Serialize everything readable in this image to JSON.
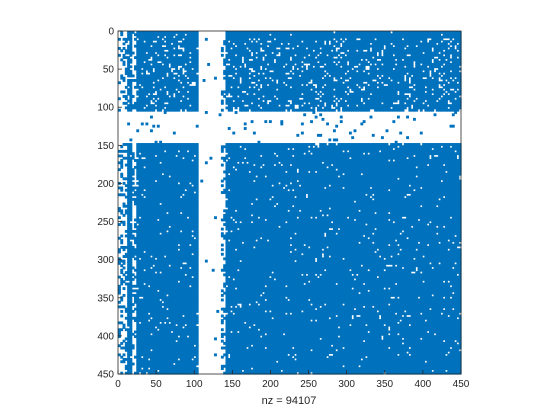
{
  "chart_data": {
    "type": "heatmap",
    "plot_kind": "sparsity pattern",
    "title": "",
    "xlabel": "nz = 94107",
    "ylabel": "",
    "nz": 94107,
    "rows": 450,
    "cols": 450,
    "xlim": [
      0,
      450
    ],
    "ylim": [
      0,
      450
    ],
    "y_axis_direction": "reversed",
    "x_axis_location": "bottom",
    "grid": false,
    "marker_color": "#0072BD",
    "x_ticks": [
      0,
      50,
      100,
      150,
      200,
      250,
      300,
      350,
      400,
      450
    ],
    "y_ticks": [
      0,
      50,
      100,
      150,
      200,
      250,
      300,
      350,
      400,
      450
    ],
    "row_bands": [
      {
        "rows": [
          0,
          8
        ],
        "density": 0.97
      },
      {
        "rows": [
          8,
          105
        ],
        "density": 0.86
      },
      {
        "rows": [
          105,
          147
        ],
        "density": 0.03
      },
      {
        "rows": [
          147,
          450
        ],
        "density": 0.96
      }
    ],
    "empty_column_ranges": [
      [
        105,
        135
      ]
    ],
    "sparse_column_ranges": [
      [
        0,
        10
      ],
      [
        17,
        22
      ],
      [
        135,
        140
      ]
    ]
  }
}
